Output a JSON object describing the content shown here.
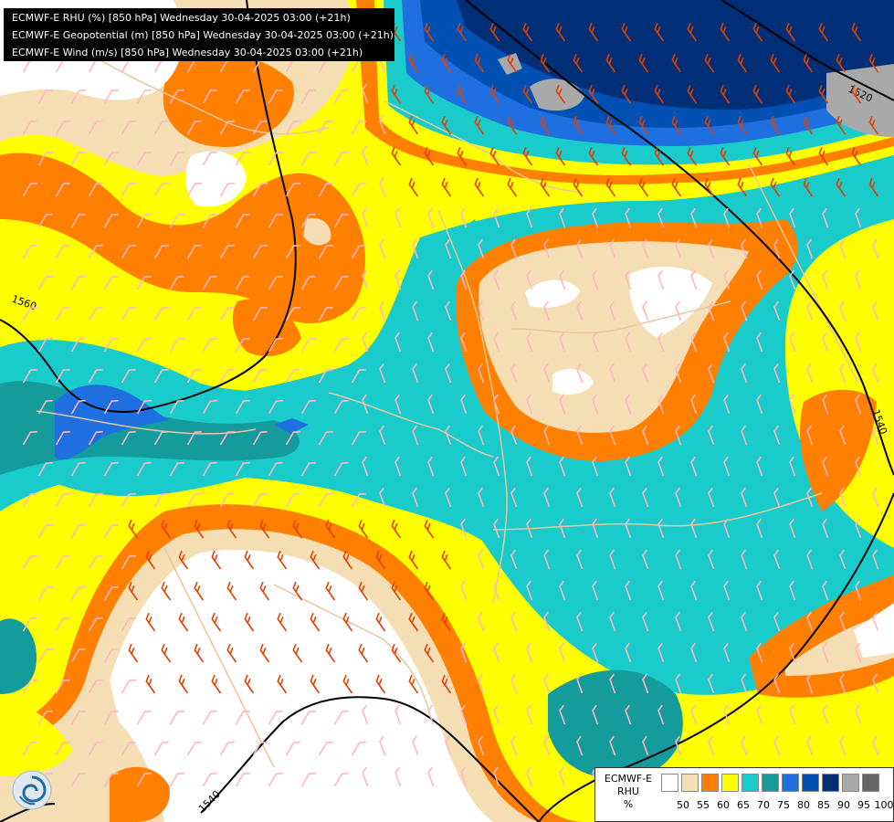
{
  "titles": [
    "ECMWF-E RHU (%) [850 hPa] Wednesday 30-04-2025 03:00 (+21h)",
    "ECMWF-E Geopotential (m) [850 hPa] Wednesday 30-04-2025 03:00 (+21h)",
    "ECMWF-E Wind (m/s) [850 hPa] Wednesday 30-04-2025 03:00 (+21h)"
  ],
  "contour_labels": [
    "1520",
    "1560",
    "1540",
    "1540"
  ],
  "legend": {
    "model": "ECMWF-E",
    "variable": "RHU",
    "unit": "%",
    "ticks": [
      "50",
      "55",
      "60",
      "65",
      "70",
      "75",
      "80",
      "85",
      "90",
      "95",
      "100"
    ],
    "colors": [
      "#ffffff",
      "#f5deb3",
      "#ff8000",
      "#ffff00",
      "#19cbcb",
      "#149c9c",
      "#1e6fe0",
      "#0050b4",
      "#002f78",
      "#a9a9a9",
      "#666666"
    ]
  },
  "palette": {
    "rh_below_50": "#ffffff",
    "rh_50_55": "#f5deb3",
    "rh_55_60": "#ff8000",
    "rh_60_65": "#ffff00",
    "rh_65_70": "#19cbcb",
    "rh_70_75": "#149c9c",
    "rh_75_80": "#1e6fe0",
    "rh_80_85": "#0050b4",
    "rh_85_90": "#002f78",
    "rh_90_95": "#a9a9a9",
    "geopotential_line": "#000000",
    "border_line": "#e6c8a0",
    "wind_barb_light": "#ffb6c1",
    "wind_barb_strong": "#e04000"
  },
  "icons": {
    "logo": "ecmwf-swirl-logo"
  }
}
